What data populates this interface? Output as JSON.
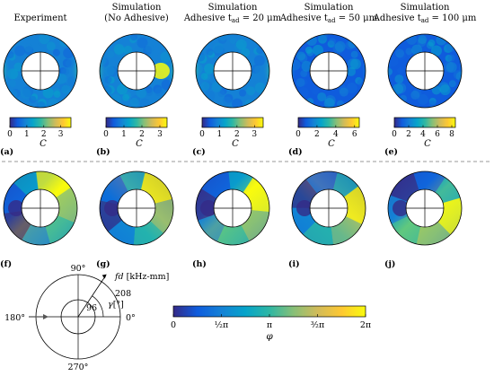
{
  "columns": [
    {
      "title1": "Experiment",
      "title2": "",
      "panel_top": "(a)",
      "panel_bottom": "(f)",
      "ticks": [
        "0",
        "1",
        "2",
        "3"
      ],
      "ticks_at": [
        0,
        1,
        2,
        3
      ],
      "cmax": 3.6,
      "clabel": "C"
    },
    {
      "title1": "Simulation",
      "title2": "(No Adhesive)",
      "panel_top": "(b)",
      "panel_bottom": "(g)",
      "ticks": [
        "0",
        "1",
        "2",
        "3"
      ],
      "ticks_at": [
        0,
        1,
        2,
        3
      ],
      "cmax": 3.4,
      "clabel": "C"
    },
    {
      "title1": "Simulation",
      "title2": "Adhesive t",
      "title2_sub": "ad",
      "title2_tail": " = 20 μm",
      "panel_top": "(c)",
      "panel_bottom": "(h)",
      "ticks": [
        "0",
        "1",
        "2",
        "3"
      ],
      "ticks_at": [
        0,
        1,
        2,
        3
      ],
      "cmax": 3.5,
      "clabel": "C"
    },
    {
      "title1": "Simulation",
      "title2": "Adhesive t",
      "title2_sub": "ad",
      "title2_tail": " = 50 μm",
      "panel_top": "(d)",
      "panel_bottom": "(i)",
      "ticks": [
        "0",
        "2",
        "4",
        "6"
      ],
      "ticks_at": [
        0,
        2,
        4,
        6
      ],
      "cmax": 6.5,
      "clabel": "C"
    },
    {
      "title1": "Simulation",
      "title2": "Adhesive t",
      "title2_sub": "ad",
      "title2_tail": " = 100 μm",
      "panel_top": "(e)",
      "panel_bottom": "(j)",
      "ticks": [
        "0",
        "2",
        "4",
        "6",
        "8"
      ],
      "ticks_at": [
        0,
        2,
        4,
        6,
        8
      ],
      "cmax": 8.5,
      "clabel": "C"
    }
  ],
  "polar_legend": {
    "radial_label": "fd [kHz-mm]",
    "radius_inner": "96",
    "radius_outer": "208",
    "angle_label": "γ[°]",
    "angles": [
      "90°",
      "180°",
      "0°",
      "270°"
    ]
  },
  "phase_colorbar": {
    "ticks": [
      "0",
      "½π",
      "π",
      "³⁄₂π",
      "2π"
    ],
    "label": "φ"
  },
  "colors": {
    "parula": [
      "#352a87",
      "#0f5cdd",
      "#1481d6",
      "#06a4ca",
      "#2eb7a4",
      "#87bf77",
      "#d1bb59",
      "#fec832",
      "#f9fb0e"
    ]
  }
}
